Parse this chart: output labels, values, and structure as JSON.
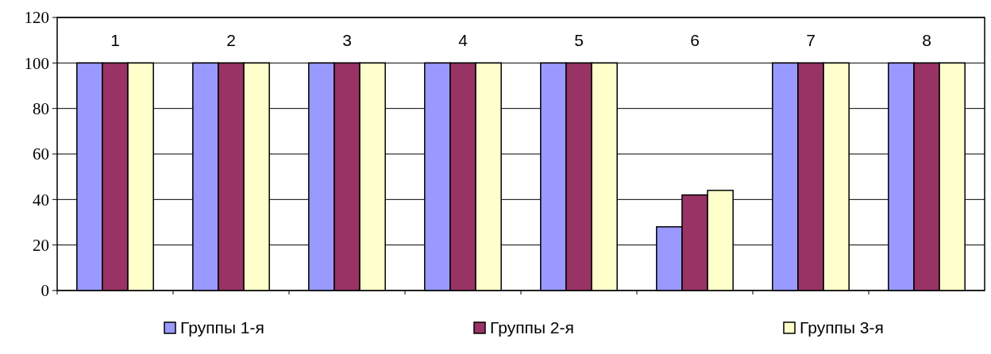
{
  "chart_data": {
    "type": "bar",
    "categories": [
      "1",
      "2",
      "3",
      "4",
      "5",
      "6",
      "7",
      "8"
    ],
    "series": [
      {
        "name": "Группы 1-я",
        "color": "#9999ff",
        "values": [
          100,
          100,
          100,
          100,
          100,
          28,
          100,
          100
        ]
      },
      {
        "name": "Группы 2-я",
        "color": "#993366",
        "values": [
          100,
          100,
          100,
          100,
          100,
          42,
          100,
          100
        ]
      },
      {
        "name": "Группы 3-я",
        "color": "#ffffcc",
        "values": [
          100,
          100,
          100,
          100,
          100,
          44,
          100,
          100
        ]
      }
    ],
    "ylim": [
      0,
      120
    ],
    "yticks": [
      0,
      20,
      40,
      60,
      80,
      100,
      120
    ],
    "grid": "y",
    "legend": "bottom"
  }
}
